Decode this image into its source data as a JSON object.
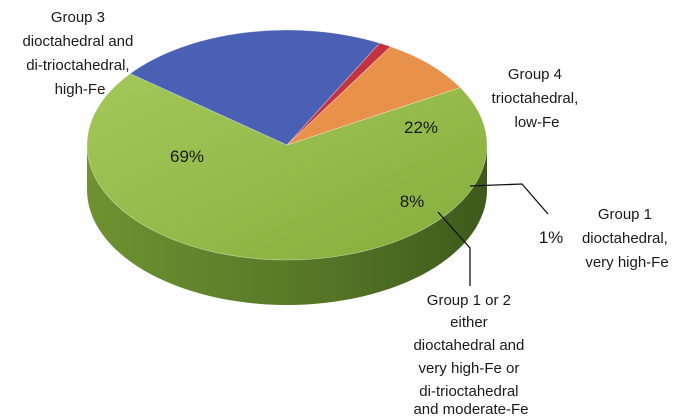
{
  "chart_data": {
    "type": "pie",
    "slices": [
      {
        "label_lines": [
          "Group 3",
          "dioctahedral and",
          "di-trioctahedral,",
          "high-Fe"
        ],
        "value": 69,
        "display": "69%",
        "color": "#8DB442"
      },
      {
        "label_lines": [
          "Group 4",
          "trioctahedral,",
          "low-Fe"
        ],
        "value": 22,
        "display": "22%",
        "color": "#4A60B4"
      },
      {
        "label_lines": [
          "Group 1",
          "dioctahedral,",
          "very high-Fe"
        ],
        "value": 1,
        "display": "1%",
        "color": "#C4313F"
      },
      {
        "label_lines": [
          "Group 1 or 2",
          "either",
          "dioctahedral and",
          "very high-Fe or",
          "di-trioctahedral",
          "and moderate-Fe"
        ],
        "value": 8,
        "display": "8%",
        "color": "#E8914A"
      }
    ]
  }
}
